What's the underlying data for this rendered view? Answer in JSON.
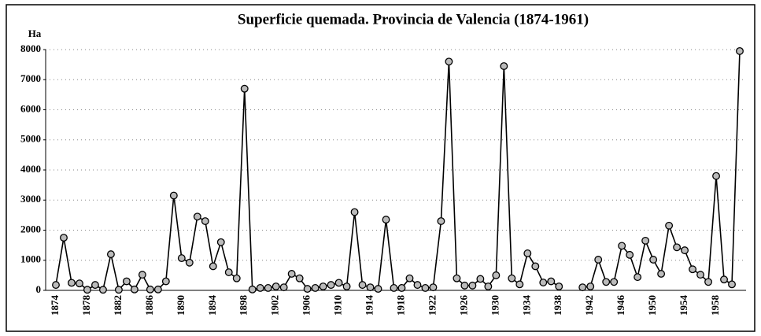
{
  "chart_data": {
    "type": "line",
    "title": "Superficie quemada. Provincia de Valencia (1874-1961)",
    "y_label": "Ha",
    "categories": [
      "1874",
      null,
      null,
      null,
      "1878",
      null,
      null,
      null,
      "1882",
      null,
      null,
      null,
      "1886",
      null,
      null,
      null,
      "1890",
      null,
      null,
      null,
      "1894",
      null,
      null,
      null,
      "1898",
      null,
      null,
      null,
      "1902",
      null,
      null,
      null,
      "1906",
      null,
      null,
      null,
      "1910",
      null,
      null,
      null,
      "1914",
      null,
      null,
      null,
      "1918",
      null,
      null,
      null,
      "1922",
      null,
      null,
      null,
      "1926",
      null,
      null,
      null,
      "1930",
      null,
      null,
      null,
      "1934",
      null,
      null,
      null,
      "1938",
      null,
      null,
      null,
      "1942",
      null,
      null,
      null,
      "1946",
      null,
      null,
      null,
      "1950",
      null,
      null,
      null,
      "1954",
      null,
      null,
      null,
      "1958",
      null,
      null,
      null
    ],
    "series": [
      {
        "name": "Ha",
        "color": "#000000",
        "values": [
          180,
          1750,
          250,
          230,
          20,
          180,
          20,
          1200,
          20,
          300,
          30,
          520,
          30,
          30,
          300,
          3150,
          1070,
          920,
          2450,
          2300,
          800,
          1600,
          600,
          400,
          6700,
          30,
          80,
          80,
          130,
          100,
          550,
          400,
          50,
          80,
          130,
          180,
          250,
          130,
          2600,
          180,
          100,
          50,
          2350,
          80,
          80,
          400,
          180,
          80,
          100,
          2300,
          7600,
          400,
          160,
          160,
          380,
          130,
          500,
          7450,
          400,
          200,
          1230,
          800,
          260,
          300,
          130,
          null,
          null,
          100,
          130,
          1020,
          280,
          280,
          1480,
          1180,
          440,
          1650,
          1020,
          550,
          2150,
          1430,
          1330,
          700,
          520,
          280,
          3800,
          360,
          200,
          7950
        ]
      }
    ],
    "ylim": [
      0,
      8000
    ],
    "yticks": [
      0,
      1000,
      2000,
      3000,
      4000,
      5000,
      6000,
      7000,
      8000
    ],
    "grid": true
  }
}
